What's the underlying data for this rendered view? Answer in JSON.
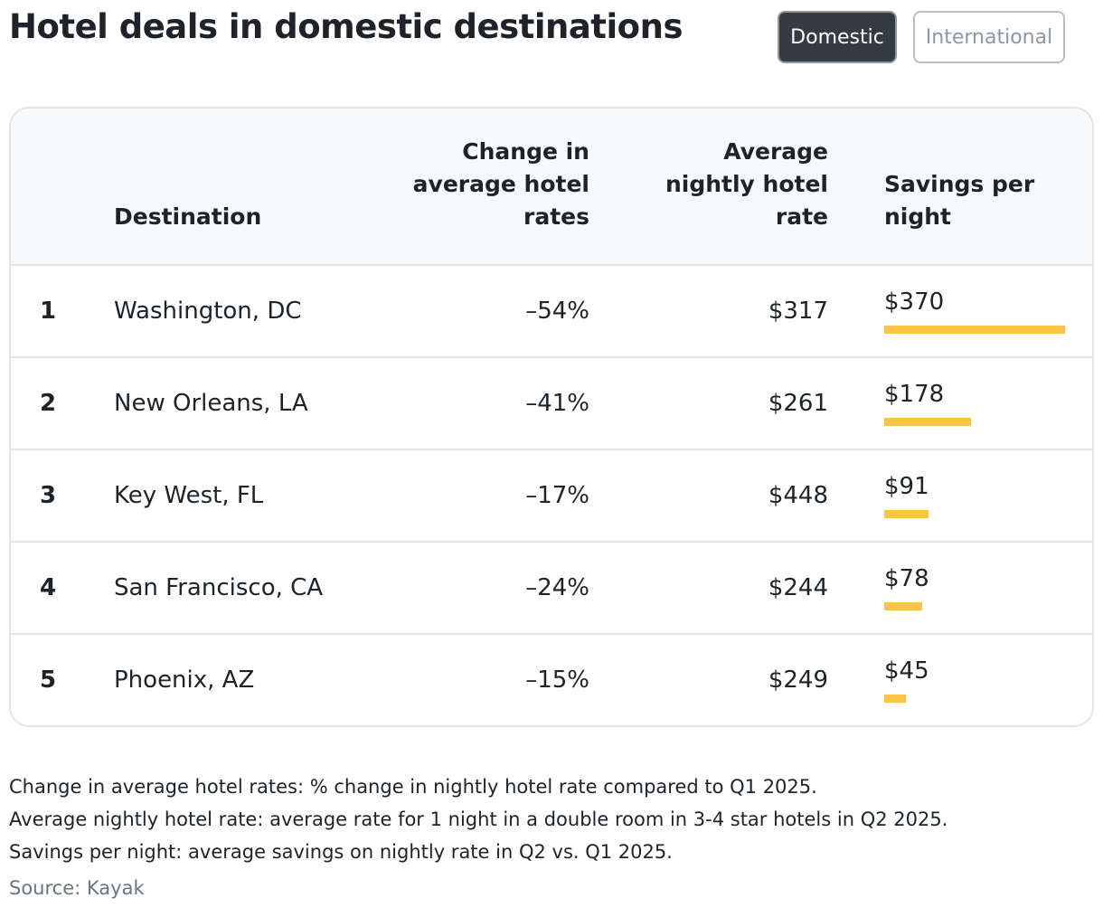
{
  "title": "Hotel deals in domestic destinations",
  "tabs": [
    {
      "label": "Domestic",
      "active": true
    },
    {
      "label": "International",
      "active": false
    }
  ],
  "table": {
    "headers": {
      "destination": "Destination",
      "change": [
        "Change in",
        "average hotel",
        "rates"
      ],
      "rate": [
        "Average",
        "nightly hotel",
        "rate"
      ],
      "savings": [
        "Savings per",
        "night"
      ]
    },
    "rows": [
      {
        "rank": "1",
        "destination": "Washington, DC",
        "change": "–54%",
        "rate": "$317",
        "savings": "$370",
        "savings_value": 370
      },
      {
        "rank": "2",
        "destination": "New Orleans, LA",
        "change": "–41%",
        "rate": "$261",
        "savings": "$178",
        "savings_value": 178
      },
      {
        "rank": "3",
        "destination": "Key West, FL",
        "change": "–17%",
        "rate": "$448",
        "savings": "$91",
        "savings_value": 91
      },
      {
        "rank": "4",
        "destination": "San Francisco, CA",
        "change": "–24%",
        "rate": "$244",
        "savings": "$78",
        "savings_value": 78
      },
      {
        "rank": "5",
        "destination": "Phoenix, AZ",
        "change": "–15%",
        "rate": "$249",
        "savings": "$45",
        "savings_value": 45
      }
    ]
  },
  "notes": [
    "Change in average hotel rates: % change in nightly hotel rate compared to Q1 2025.",
    "Average nightly hotel rate: average rate for 1 night in a double room in 3-4 star hotels in Q2 2025.",
    "Savings per night: average savings on nightly rate in Q2 vs. Q1 2025."
  ],
  "source": "Source: Kayak",
  "colors": {
    "bar": "#fcc445",
    "active_tab": "#343b41"
  }
}
